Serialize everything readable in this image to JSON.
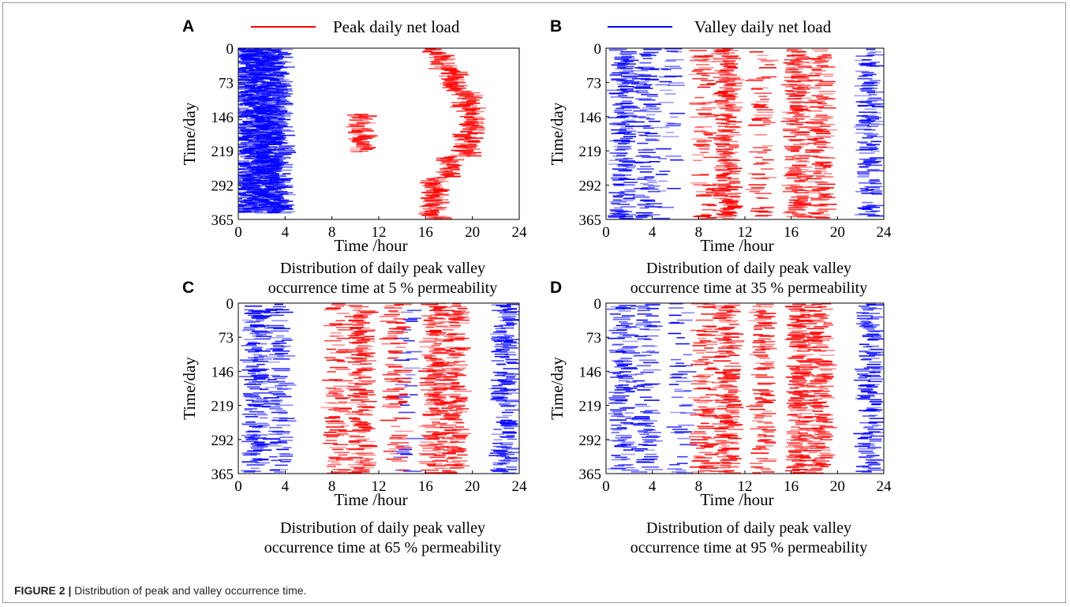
{
  "figure_caption": {
    "label": "FIGURE 2 |",
    "text": "Distribution of peak and valley occurrence time."
  },
  "legend": {
    "peak": {
      "label": "Peak daily net load",
      "color": "#ff0000"
    },
    "valley": {
      "label": "Valley daily net load",
      "color": "#0000ff"
    }
  },
  "chart_data": [
    {
      "panel": "A",
      "type": "heatmap",
      "permeability_percent": 5,
      "caption": [
        "Distribution of daily peak valley",
        "occurrence time at 5 % permeability"
      ],
      "xlabel": "Time  /hour",
      "ylabel": "Time/day",
      "xlim": [
        0,
        24
      ],
      "ylim": [
        0,
        365
      ],
      "y_axis_inverted": true,
      "xticks": [
        0,
        4,
        8,
        12,
        16,
        20,
        24
      ],
      "yticks": [
        0,
        73,
        146,
        219,
        292,
        365
      ],
      "peak_hour_bands": [
        {
          "days": [
            0,
            10
          ],
          "hour": 16.5,
          "density": 1.0
        },
        {
          "days": [
            10,
            45
          ],
          "hour": 17.5,
          "density": 1.0
        },
        {
          "days": [
            45,
            90
          ],
          "hour": 18.5,
          "density": 1.0
        },
        {
          "days": [
            90,
            125
          ],
          "hour": 19.5,
          "density": 1.0
        },
        {
          "days": [
            125,
            180
          ],
          "hour": 20.0,
          "density": 0.8
        },
        {
          "days": [
            180,
            230
          ],
          "hour": 19.5,
          "density": 0.9
        },
        {
          "days": [
            230,
            275
          ],
          "hour": 18.0,
          "density": 1.0
        },
        {
          "days": [
            275,
            365
          ],
          "hour": 16.8,
          "density": 1.0
        },
        {
          "days": [
            140,
            220
          ],
          "hour": 10.5,
          "density": 0.85
        }
      ],
      "valley_hour_bands": [
        {
          "days": [
            0,
            350
          ],
          "hour": 1.5,
          "density": 0.95
        },
        {
          "days": [
            0,
            350
          ],
          "hour": 2.5,
          "density": 1.0
        },
        {
          "days": [
            0,
            350
          ],
          "hour": 3.5,
          "density": 0.9
        },
        {
          "days": [
            0,
            350
          ],
          "hour": 0.5,
          "density": 0.75
        }
      ]
    },
    {
      "panel": "B",
      "type": "heatmap",
      "permeability_percent": 35,
      "caption": [
        "Distribution of daily peak valley",
        "occurrence time at 35 % permeability"
      ],
      "xlabel": "Time  /hour",
      "ylabel": "Time/day",
      "xlim": [
        0,
        24
      ],
      "ylim": [
        0,
        365
      ],
      "y_axis_inverted": true,
      "xticks": [
        0,
        4,
        8,
        12,
        16,
        20,
        24
      ],
      "yticks": [
        0,
        73,
        146,
        219,
        292,
        365
      ],
      "peak_hour_bands": [
        {
          "days": [
            0,
            365
          ],
          "hour": 10.5,
          "density": 0.7
        },
        {
          "days": [
            0,
            365
          ],
          "hour": 16.5,
          "density": 0.55
        },
        {
          "days": [
            0,
            365
          ],
          "hour": 18.5,
          "density": 0.5
        },
        {
          "days": [
            0,
            365
          ],
          "hour": 8.5,
          "density": 0.3
        },
        {
          "days": [
            0,
            365
          ],
          "hour": 13.5,
          "density": 0.25
        }
      ],
      "valley_hour_bands": [
        {
          "days": [
            0,
            365
          ],
          "hour": 1.5,
          "density": 0.55
        },
        {
          "days": [
            0,
            365
          ],
          "hour": 3.5,
          "density": 0.4
        },
        {
          "days": [
            0,
            365
          ],
          "hour": 22.8,
          "density": 0.5
        },
        {
          "days": [
            0,
            365
          ],
          "hour": 5.5,
          "density": 0.15
        }
      ]
    },
    {
      "panel": "C",
      "type": "heatmap",
      "permeability_percent": 65,
      "caption": [
        "Distribution of daily peak valley",
        "occurrence time at 65 % permeability"
      ],
      "xlabel": "Time  /hour",
      "ylabel": "Time/day",
      "xlim": [
        0,
        24
      ],
      "ylim": [
        0,
        365
      ],
      "y_axis_inverted": true,
      "xticks": [
        0,
        4,
        8,
        12,
        16,
        20,
        24
      ],
      "yticks": [
        0,
        73,
        146,
        219,
        292,
        365
      ],
      "peak_hour_bands": [
        {
          "days": [
            0,
            365
          ],
          "hour": 10.5,
          "density": 0.6
        },
        {
          "days": [
            0,
            365
          ],
          "hour": 16.8,
          "density": 0.6
        },
        {
          "days": [
            0,
            365
          ],
          "hour": 18.5,
          "density": 0.5
        },
        {
          "days": [
            0,
            365
          ],
          "hour": 8.5,
          "density": 0.35
        },
        {
          "days": [
            0,
            365
          ],
          "hour": 13.5,
          "density": 0.35
        }
      ],
      "valley_hour_bands": [
        {
          "days": [
            0,
            365
          ],
          "hour": 1.5,
          "density": 0.5
        },
        {
          "days": [
            0,
            365
          ],
          "hour": 3.5,
          "density": 0.35
        },
        {
          "days": [
            0,
            365
          ],
          "hour": 22.8,
          "density": 0.55
        },
        {
          "days": [
            0,
            365
          ],
          "hour": 14.5,
          "density": 0.15
        }
      ]
    },
    {
      "panel": "D",
      "type": "heatmap",
      "permeability_percent": 95,
      "caption": [
        "Distribution of daily peak valley",
        "occurrence time at 95 % permeability"
      ],
      "xlabel": "Time  /hour",
      "ylabel": "Time/day",
      "xlim": [
        0,
        24
      ],
      "ylim": [
        0,
        365
      ],
      "y_axis_inverted": true,
      "xticks": [
        0,
        4,
        8,
        12,
        16,
        20,
        24
      ],
      "yticks": [
        0,
        73,
        146,
        219,
        292,
        365
      ],
      "peak_hour_bands": [
        {
          "days": [
            0,
            365
          ],
          "hour": 10.5,
          "density": 0.6
        },
        {
          "days": [
            0,
            365
          ],
          "hour": 16.8,
          "density": 0.65
        },
        {
          "days": [
            0,
            365
          ],
          "hour": 18.5,
          "density": 0.45
        },
        {
          "days": [
            0,
            365
          ],
          "hour": 8.5,
          "density": 0.35
        },
        {
          "days": [
            0,
            365
          ],
          "hour": 13.5,
          "density": 0.4
        }
      ],
      "valley_hour_bands": [
        {
          "days": [
            0,
            365
          ],
          "hour": 1.5,
          "density": 0.45
        },
        {
          "days": [
            0,
            365
          ],
          "hour": 3.5,
          "density": 0.3
        },
        {
          "days": [
            0,
            365
          ],
          "hour": 22.8,
          "density": 0.5
        },
        {
          "days": [
            0,
            365
          ],
          "hour": 6.5,
          "density": 0.15
        }
      ]
    }
  ]
}
